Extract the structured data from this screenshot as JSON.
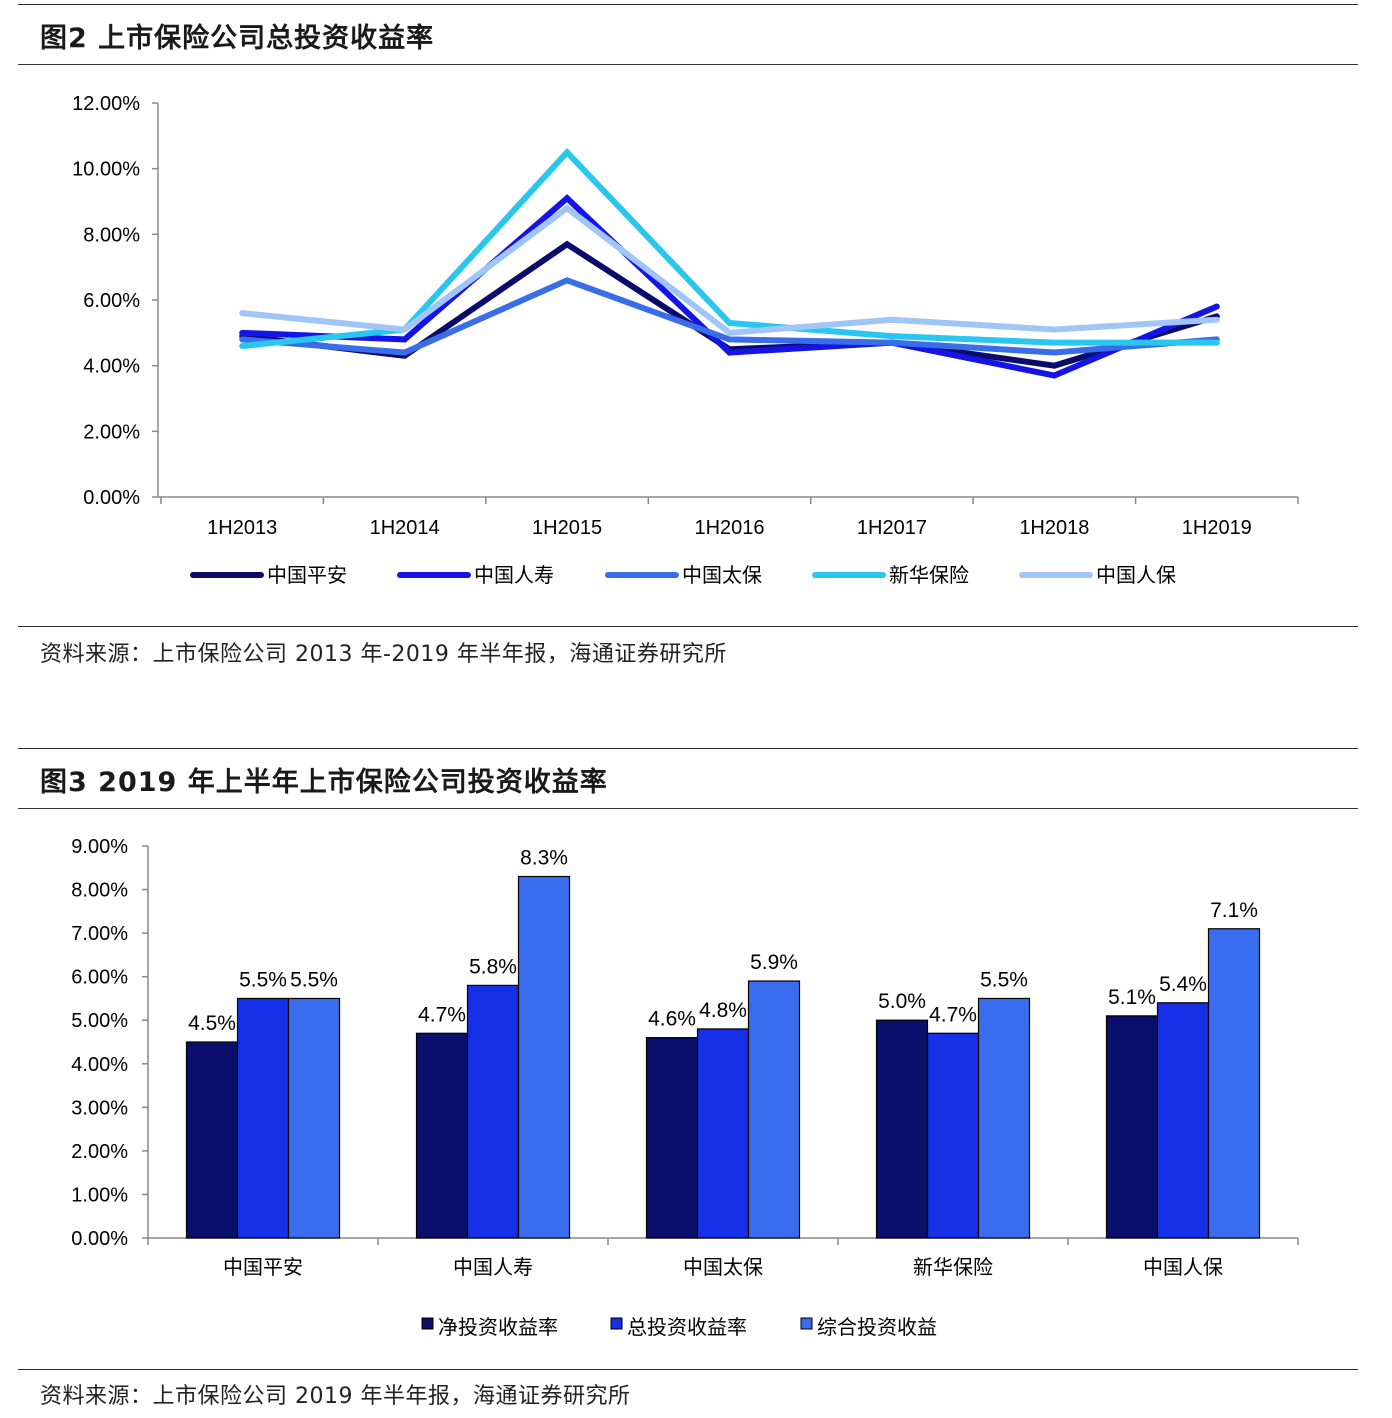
{
  "figure2": {
    "title": "图2 上市保险公司总投资收益率",
    "source": "资料来源：上市保险公司 2013 年-2019 年半年报，海通证券研究所"
  },
  "figure3": {
    "title": "图3 2019 年上半年上市保险公司投资收益率",
    "source": "资料来源：上市保险公司 2019 年半年报，海通证券研究所"
  },
  "chart_data": [
    {
      "type": "line",
      "title": "上市保险公司总投资收益率",
      "categories": [
        "1H2013",
        "1H2014",
        "1H2015",
        "1H2016",
        "1H2017",
        "1H2018",
        "1H2019"
      ],
      "y_ticks": [
        "0.00%",
        "2.00%",
        "4.00%",
        "6.00%",
        "8.00%",
        "10.00%",
        "12.00%"
      ],
      "ylim": [
        0,
        12
      ],
      "legend_position": "bottom",
      "series": [
        {
          "name": "中国平安",
          "color": "#0b0b6e",
          "values": [
            4.9,
            4.3,
            7.7,
            4.5,
            4.7,
            4.0,
            5.5
          ]
        },
        {
          "name": "中国人寿",
          "color": "#1414e6",
          "values": [
            5.0,
            4.8,
            9.1,
            4.4,
            4.7,
            3.7,
            5.8
          ]
        },
        {
          "name": "中国太保",
          "color": "#3a6ee8",
          "values": [
            4.8,
            4.4,
            6.6,
            4.8,
            4.7,
            4.4,
            4.8
          ]
        },
        {
          "name": "新华保险",
          "color": "#29c7f0",
          "values": [
            4.6,
            5.1,
            10.5,
            5.3,
            4.9,
            4.7,
            4.7
          ]
        },
        {
          "name": "中国人保",
          "color": "#9fc6f7",
          "values": [
            5.6,
            5.1,
            8.8,
            5.0,
            5.4,
            5.1,
            5.4
          ]
        }
      ]
    },
    {
      "type": "bar",
      "title": "2019 年上半年上市保险公司投资收益率",
      "categories": [
        "中国平安",
        "中国人寿",
        "中国太保",
        "新华保险",
        "中国人保"
      ],
      "y_ticks": [
        "0.00%",
        "1.00%",
        "2.00%",
        "3.00%",
        "4.00%",
        "5.00%",
        "6.00%",
        "7.00%",
        "8.00%",
        "9.00%"
      ],
      "ylim": [
        0,
        9
      ],
      "legend_position": "bottom",
      "series": [
        {
          "name": "净投资收益率",
          "color": "#0a0f6b",
          "values": [
            4.5,
            4.7,
            4.6,
            5.0,
            5.1
          ],
          "labels": [
            "4.5%",
            "4.7%",
            "4.6%",
            "5.0%",
            "5.1%"
          ]
        },
        {
          "name": "总投资收益率",
          "color": "#1530e6",
          "values": [
            5.5,
            5.8,
            4.8,
            4.7,
            5.4
          ],
          "labels": [
            "5.5%",
            "5.8%",
            "4.8%",
            "4.7%",
            "5.4%"
          ]
        },
        {
          "name": "综合投资收益",
          "color": "#3a6cf0",
          "values": [
            5.5,
            8.3,
            5.9,
            5.5,
            7.1
          ],
          "labels": [
            "5.5%",
            "8.3%",
            "5.9%",
            "5.5%",
            "7.1%"
          ]
        }
      ]
    }
  ]
}
